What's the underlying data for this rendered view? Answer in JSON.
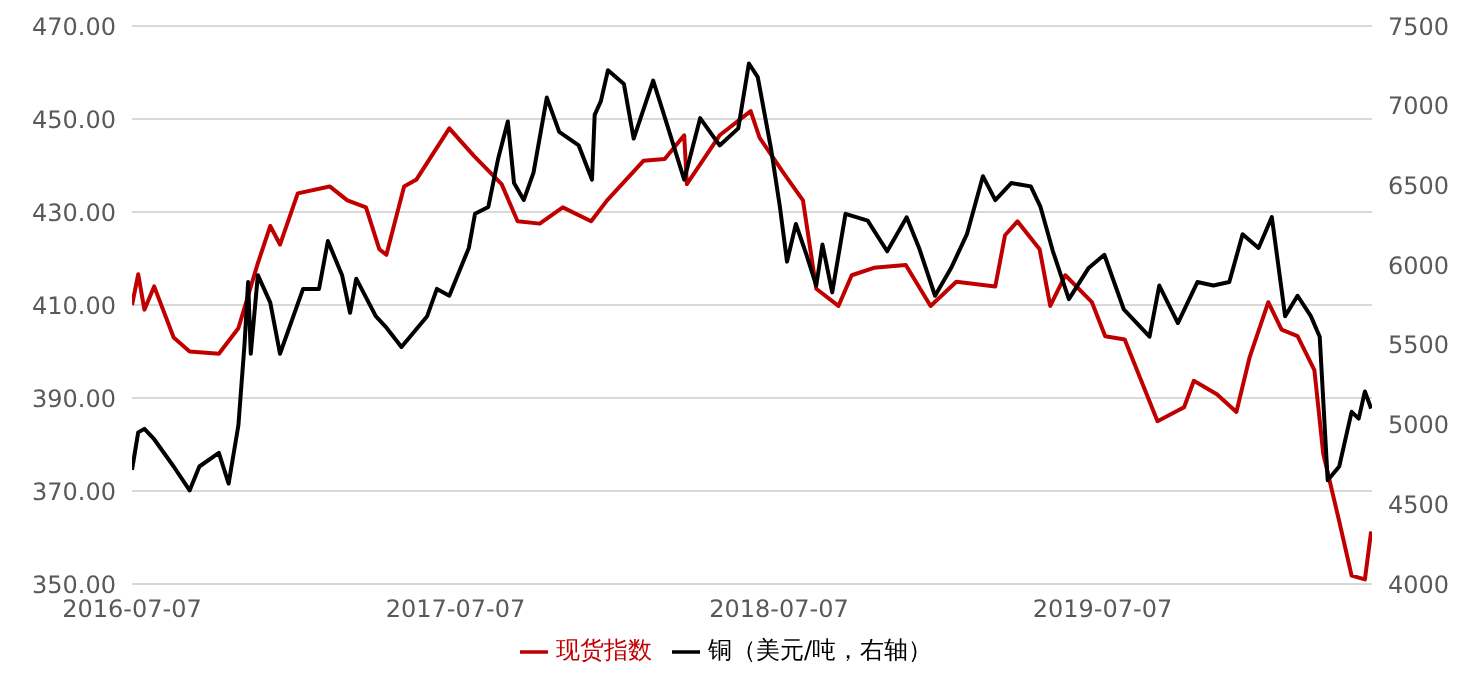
{
  "chart_data": {
    "type": "line",
    "xlim": [
      "2016-07-07",
      "2020-05-06"
    ],
    "xticks": [
      "2016-07-07",
      "2017-07-07",
      "2018-07-07",
      "2019-07-07"
    ],
    "ylim": [
      350,
      470
    ],
    "yticks": [
      {
        "value": 350,
        "label": "350.00"
      },
      {
        "value": 370,
        "label": "370.00"
      },
      {
        "value": 390,
        "label": "390.00"
      },
      {
        "value": 410,
        "label": "410.00"
      },
      {
        "value": 430,
        "label": "430.00"
      },
      {
        "value": 450,
        "label": "450.00"
      },
      {
        "value": 470,
        "label": "470.00"
      }
    ],
    "y2lim": [
      4000,
      7500
    ],
    "y2ticks": [
      4000,
      4500,
      5000,
      5500,
      6000,
      6500,
      7000,
      7500
    ],
    "grid": "y",
    "legend": "bottom",
    "marker": "none",
    "line_style": "solid",
    "series": [
      {
        "name": "现货指数",
        "color": "#c00000",
        "x": [
          "2016-07-07",
          "2016-07-14",
          "2016-07-21",
          "2016-08-01",
          "2016-08-23",
          "2016-09-10",
          "2016-10-13",
          "2016-11-04",
          "2016-11-26",
          "2016-12-10",
          "2016-12-21",
          "2017-01-10",
          "2017-02-15",
          "2017-03-07",
          "2017-03-28",
          "2017-04-12",
          "2017-04-20",
          "2017-05-10",
          "2017-05-24",
          "2017-06-30",
          "2017-07-28",
          "2017-08-28",
          "2017-09-15",
          "2017-10-10",
          "2017-11-05",
          "2017-12-07",
          "2017-12-25",
          "2018-02-04",
          "2018-02-28",
          "2018-03-22",
          "2018-03-25",
          "2018-05-01",
          "2018-06-05",
          "2018-06-15",
          "2018-07-12",
          "2018-08-03",
          "2018-08-18",
          "2018-09-12",
          "2018-09-27",
          "2018-10-22",
          "2018-11-27",
          "2018-12-25",
          "2019-01-23",
          "2019-03-08",
          "2019-03-19",
          "2019-04-02",
          "2019-04-27",
          "2019-05-09",
          "2019-05-26",
          "2019-06-25",
          "2019-07-10",
          "2019-08-01",
          "2019-09-07",
          "2019-10-07",
          "2019-10-18",
          "2019-11-13",
          "2019-12-05",
          "2019-12-20",
          "2020-01-10",
          "2020-01-25",
          "2020-02-12",
          "2020-03-02",
          "2020-03-12",
          "2020-03-30",
          "2020-04-13",
          "2020-04-28",
          "2020-05-05"
        ],
        "values": [
          410,
          416.6,
          409,
          414,
          403,
          400,
          399.5,
          405,
          419,
          427,
          423,
          434,
          435.5,
          432.5,
          431,
          422,
          420.8,
          435.5,
          437,
          448,
          442,
          436,
          428,
          427.5,
          431,
          428,
          432.5,
          441,
          441.4,
          446.5,
          436,
          446.5,
          451.7,
          446,
          438.4,
          432.5,
          413.5,
          409.8,
          416.4,
          418,
          418.6,
          409.8,
          415,
          414,
          425,
          428,
          422,
          409.8,
          416.4,
          410.6,
          403.3,
          402.6,
          385,
          388,
          393.7,
          390.8,
          387,
          398.8,
          410.6,
          404.7,
          403.3,
          396,
          378,
          363.5,
          351.8,
          351,
          361.3
        ]
      },
      {
        "name": "铜（美元/吨，右轴）",
        "color": "#000000",
        "axis": "y2",
        "x": [
          "2016-07-07",
          "2016-07-14",
          "2016-07-21",
          "2016-08-01",
          "2016-08-23",
          "2016-09-10",
          "2016-09-21",
          "2016-10-13",
          "2016-10-24",
          "2016-11-04",
          "2016-11-11",
          "2016-11-15",
          "2016-11-18",
          "2016-11-26",
          "2016-12-10",
          "2016-12-21",
          "2017-01-16",
          "2017-02-03",
          "2017-02-13",
          "2017-03-01",
          "2017-03-10",
          "2017-03-17",
          "2017-04-08",
          "2017-04-19",
          "2017-05-07",
          "2017-06-05",
          "2017-06-16",
          "2017-06-30",
          "2017-07-22",
          "2017-07-29",
          "2017-08-13",
          "2017-08-24",
          "2017-09-04",
          "2017-09-11",
          "2017-09-22",
          "2017-10-03",
          "2017-10-18",
          "2017-11-01",
          "2017-11-23",
          "2017-12-08",
          "2017-12-11",
          "2017-12-18",
          "2017-12-26",
          "2018-01-13",
          "2018-01-24",
          "2018-02-15",
          "2018-02-26",
          "2018-03-22",
          "2018-04-09",
          "2018-05-01",
          "2018-05-22",
          "2018-06-03",
          "2018-06-13",
          "2018-06-28",
          "2018-07-08",
          "2018-07-16",
          "2018-07-26",
          "2018-08-07",
          "2018-08-18",
          "2018-08-25",
          "2018-09-05",
          "2018-09-20",
          "2018-10-15",
          "2018-11-06",
          "2018-11-28",
          "2018-12-12",
          "2018-12-30",
          "2019-01-17",
          "2019-02-04",
          "2019-02-22",
          "2019-03-08",
          "2019-03-26",
          "2019-04-17",
          "2019-04-28",
          "2019-05-12",
          "2019-05-30",
          "2019-06-21",
          "2019-07-09",
          "2019-07-31",
          "2019-08-29",
          "2019-09-09",
          "2019-09-30",
          "2019-10-22",
          "2019-11-09",
          "2019-11-27",
          "2019-12-12",
          "2019-12-30",
          "2020-01-14",
          "2020-01-29",
          "2020-02-12",
          "2020-02-27",
          "2020-03-08",
          "2020-03-17",
          "2020-03-30",
          "2020-04-13",
          "2020-04-21",
          "2020-04-28",
          "2020-05-05"
        ],
        "values": [
          4716,
          4951,
          4973,
          4908,
          4737,
          4587,
          4737,
          4823,
          4630,
          4994,
          5508,
          5894,
          5444,
          5937,
          5765,
          5444,
          5851,
          5851,
          6151,
          5937,
          5701,
          5915,
          5680,
          5615,
          5487,
          5680,
          5851,
          5808,
          6108,
          6322,
          6365,
          6665,
          6901,
          6515,
          6408,
          6580,
          7051,
          6836,
          6751,
          6536,
          6943,
          7029,
          7222,
          7136,
          6794,
          7158,
          6965,
          6536,
          6922,
          6751,
          6858,
          7265,
          7179,
          6729,
          6365,
          6022,
          6258,
          6065,
          5872,
          6129,
          5829,
          6322,
          6279,
          6087,
          6300,
          6108,
          5808,
          5980,
          6194,
          6558,
          6408,
          6515,
          6494,
          6365,
          6087,
          5787,
          5980,
          6065,
          5722,
          5551,
          5872,
          5637,
          5894,
          5872,
          5894,
          6194,
          6108,
          6301,
          5680,
          5808,
          5680,
          5551,
          4651,
          4737,
          5080,
          5037,
          5208,
          5101
        ]
      }
    ]
  }
}
